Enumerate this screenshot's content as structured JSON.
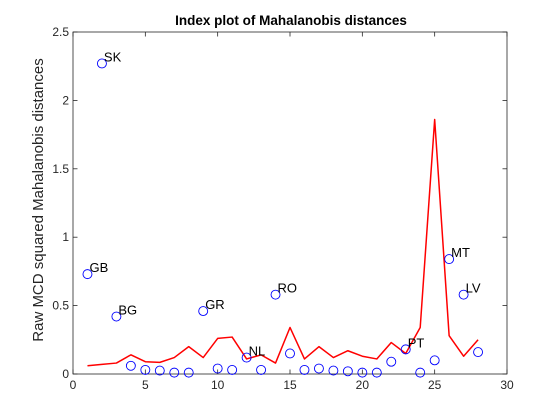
{
  "chart_data": {
    "type": "scatter",
    "title": "Index plot of Mahalanobis distances",
    "xlabel": "",
    "ylabel": "Raw MCD squared Mahalanobis distances",
    "xlim": [
      0,
      30
    ],
    "ylim": [
      0,
      2.5
    ],
    "xticks": [
      0,
      5,
      10,
      15,
      20,
      25,
      30
    ],
    "yticks": [
      0,
      0.5,
      1,
      1.5,
      2,
      2.5
    ],
    "xtick_labels": [
      "0",
      "5",
      "10",
      "15",
      "20",
      "25",
      "30"
    ],
    "ytick_labels": [
      "0",
      "0.5",
      "1",
      "1.5",
      "2",
      "2.5"
    ],
    "grid": false,
    "series": [
      {
        "kind": "points",
        "marker": "circle",
        "color": "#0000ff",
        "x": [
          1,
          2,
          3,
          4,
          5,
          6,
          7,
          8,
          9,
          10,
          11,
          12,
          13,
          14,
          15,
          16,
          17,
          18,
          19,
          20,
          21,
          22,
          23,
          24,
          25,
          26,
          27,
          28
        ],
        "y": [
          0.73,
          2.27,
          0.42,
          0.06,
          0.03,
          0.025,
          0.01,
          0.01,
          0.46,
          0.04,
          0.03,
          0.12,
          0.03,
          0.58,
          0.15,
          0.03,
          0.04,
          0.025,
          0.02,
          0.01,
          0.01,
          0.09,
          0.18,
          0.01,
          0.1,
          0.84,
          0.58,
          0.16
        ]
      },
      {
        "kind": "line",
        "color": "#ff0000",
        "x": [
          1,
          2,
          3,
          4,
          5,
          6,
          7,
          8,
          9,
          10,
          11,
          12,
          13,
          14,
          15,
          16,
          17,
          18,
          19,
          20,
          21,
          22,
          23,
          24,
          25,
          26,
          27,
          28
        ],
        "y": [
          0.06,
          0.07,
          0.08,
          0.14,
          0.09,
          0.085,
          0.12,
          0.2,
          0.12,
          0.26,
          0.27,
          0.11,
          0.14,
          0.08,
          0.34,
          0.11,
          0.2,
          0.12,
          0.17,
          0.13,
          0.11,
          0.23,
          0.15,
          0.34,
          1.86,
          0.28,
          0.13,
          0.25
        ]
      }
    ],
    "annotations": [
      {
        "text": "GB",
        "x": 1,
        "y": 0.73
      },
      {
        "text": "SK",
        "x": 2,
        "y": 2.27
      },
      {
        "text": "BG",
        "x": 3,
        "y": 0.42
      },
      {
        "text": "GR",
        "x": 9,
        "y": 0.46
      },
      {
        "text": "NL",
        "x": 12,
        "y": 0.12
      },
      {
        "text": "RO",
        "x": 14,
        "y": 0.58
      },
      {
        "text": "PT",
        "x": 23,
        "y": 0.18
      },
      {
        "text": "MT",
        "x": 26,
        "y": 0.84
      },
      {
        "text": "LV",
        "x": 27,
        "y": 0.58
      }
    ]
  }
}
